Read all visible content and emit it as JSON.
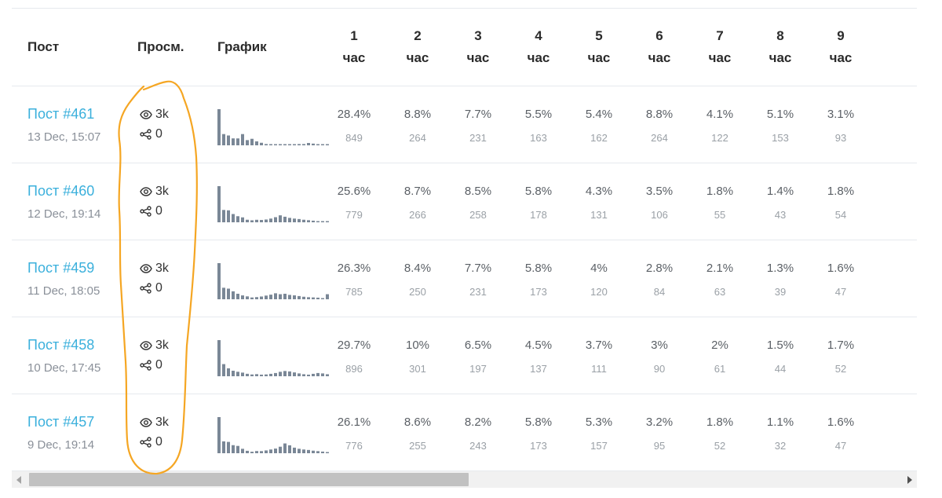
{
  "header": {
    "post": "Пост",
    "views": "Просм.",
    "chart": "График",
    "hours": [
      {
        "num": "1",
        "unit": "час"
      },
      {
        "num": "2",
        "unit": "час"
      },
      {
        "num": "3",
        "unit": "час"
      },
      {
        "num": "4",
        "unit": "час"
      },
      {
        "num": "5",
        "unit": "час"
      },
      {
        "num": "6",
        "unit": "час"
      },
      {
        "num": "7",
        "unit": "час"
      },
      {
        "num": "8",
        "unit": "час"
      },
      {
        "num": "9",
        "unit": "час"
      }
    ]
  },
  "rows": [
    {
      "title": "Пост #461",
      "date": "13 Dec, 15:07",
      "views": "3k",
      "shares": "0",
      "cells": [
        [
          "28.4%",
          "849"
        ],
        [
          "8.8%",
          "264"
        ],
        [
          "7.7%",
          "231"
        ],
        [
          "5.5%",
          "163"
        ],
        [
          "5.4%",
          "162"
        ],
        [
          "8.8%",
          "264"
        ],
        [
          "4.1%",
          "122"
        ],
        [
          "5.1%",
          "153"
        ],
        [
          "3.1%",
          "93"
        ]
      ],
      "spark": [
        849,
        264,
        231,
        163,
        162,
        264,
        122,
        153,
        93,
        60,
        30,
        10,
        5,
        5,
        5,
        5,
        5,
        30,
        30,
        55,
        40,
        25,
        10,
        5
      ]
    },
    {
      "title": "Пост #460",
      "date": "12 Dec, 19:14",
      "views": "3k",
      "shares": "0",
      "cells": [
        [
          "25.6%",
          "779"
        ],
        [
          "8.7%",
          "266"
        ],
        [
          "8.5%",
          "258"
        ],
        [
          "5.8%",
          "178"
        ],
        [
          "4.3%",
          "131"
        ],
        [
          "3.5%",
          "106"
        ],
        [
          "1.8%",
          "55"
        ],
        [
          "1.4%",
          "43"
        ],
        [
          "1.8%",
          "54"
        ]
      ],
      "spark": [
        779,
        266,
        258,
        178,
        131,
        106,
        55,
        43,
        54,
        50,
        60,
        80,
        110,
        150,
        120,
        95,
        80,
        70,
        55,
        45,
        35,
        25,
        20,
        15
      ]
    },
    {
      "title": "Пост #459",
      "date": "11 Dec, 18:05",
      "views": "3k",
      "shares": "0",
      "cells": [
        [
          "26.3%",
          "785"
        ],
        [
          "8.4%",
          "250"
        ],
        [
          "7.7%",
          "231"
        ],
        [
          "5.8%",
          "173"
        ],
        [
          "4%",
          "120"
        ],
        [
          "2.8%",
          "84"
        ],
        [
          "2.1%",
          "63"
        ],
        [
          "1.3%",
          "39"
        ],
        [
          "1.6%",
          "47"
        ]
      ],
      "spark": [
        785,
        250,
        231,
        173,
        120,
        84,
        63,
        39,
        47,
        60,
        80,
        100,
        130,
        110,
        120,
        95,
        85,
        70,
        55,
        45,
        40,
        35,
        25,
        110
      ]
    },
    {
      "title": "Пост #458",
      "date": "10 Dec, 17:45",
      "views": "3k",
      "shares": "0",
      "cells": [
        [
          "29.7%",
          "896"
        ],
        [
          "10%",
          "301"
        ],
        [
          "6.5%",
          "197"
        ],
        [
          "4.5%",
          "137"
        ],
        [
          "3.7%",
          "111"
        ],
        [
          "3%",
          "90"
        ],
        [
          "2%",
          "61"
        ],
        [
          "1.5%",
          "44"
        ],
        [
          "1.7%",
          "52"
        ]
      ],
      "spark": [
        896,
        301,
        197,
        137,
        111,
        90,
        61,
        44,
        52,
        40,
        45,
        60,
        80,
        110,
        130,
        120,
        95,
        70,
        50,
        40,
        60,
        80,
        70,
        50
      ]
    },
    {
      "title": "Пост #457",
      "date": "9 Dec, 19:14",
      "views": "3k",
      "shares": "0",
      "cells": [
        [
          "26.1%",
          "776"
        ],
        [
          "8.6%",
          "255"
        ],
        [
          "8.2%",
          "243"
        ],
        [
          "5.8%",
          "173"
        ],
        [
          "5.3%",
          "157"
        ],
        [
          "3.2%",
          "95"
        ],
        [
          "1.8%",
          "52"
        ],
        [
          "1.1%",
          "32"
        ],
        [
          "1.6%",
          "47"
        ]
      ],
      "spark": [
        776,
        255,
        243,
        173,
        157,
        95,
        52,
        32,
        47,
        45,
        60,
        80,
        100,
        140,
        210,
        170,
        120,
        95,
        80,
        70,
        55,
        45,
        35,
        25
      ]
    }
  ],
  "colors": {
    "link": "#3bb0dc",
    "bar": "#7a8796",
    "annotation": "#f5a623"
  }
}
